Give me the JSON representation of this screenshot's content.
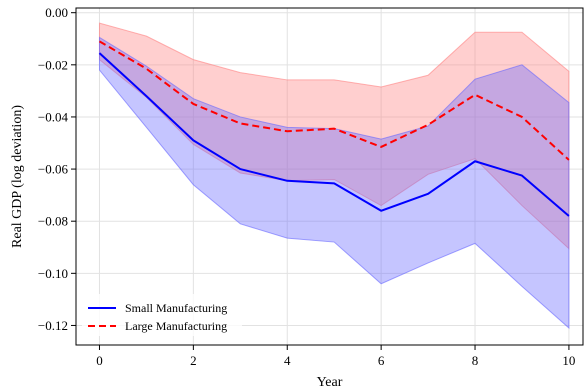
{
  "chart_data": {
    "type": "line",
    "title": "",
    "xlabel": "Year",
    "ylabel": "Real GDP (log deviation)",
    "xlim": [
      -0.5,
      10.3
    ],
    "ylim": [
      -0.1275,
      0.0018
    ],
    "xticks": [
      0,
      2,
      4,
      6,
      8,
      10
    ],
    "yticks": [
      0.0,
      -0.02,
      -0.04,
      -0.06,
      -0.08,
      -0.1,
      -0.12
    ],
    "ytick_labels": [
      "0.00",
      "−0.02",
      "−0.04",
      "−0.06",
      "−0.08",
      "−0.10",
      "−0.12"
    ],
    "grid": true,
    "legend_position": "lower-left",
    "x": [
      0,
      1,
      2,
      3,
      4,
      5,
      6,
      7,
      8,
      9,
      10
    ],
    "series": [
      {
        "name": "Small Manufacturing",
        "color": "#0000ff",
        "band_color": "#6666ff",
        "line_style": "solid",
        "values": [
          -0.0155,
          -0.032,
          -0.049,
          -0.06,
          -0.0645,
          -0.0655,
          -0.076,
          -0.0695,
          -0.057,
          -0.0625,
          -0.078
        ],
        "lower": [
          -0.022,
          -0.044,
          -0.066,
          -0.081,
          -0.0865,
          -0.088,
          -0.104,
          -0.096,
          -0.0885,
          -0.105,
          -0.121
        ],
        "upper": [
          -0.0095,
          -0.0205,
          -0.033,
          -0.04,
          -0.044,
          -0.0445,
          -0.0485,
          -0.0435,
          -0.0255,
          -0.02,
          -0.0345
        ]
      },
      {
        "name": "Large Manufacturing",
        "color": "#ff0000",
        "band_color": "#ff8080",
        "line_style": "dashed",
        "values": [
          -0.011,
          -0.0215,
          -0.035,
          -0.0425,
          -0.0455,
          -0.0445,
          -0.0515,
          -0.043,
          -0.0315,
          -0.04,
          -0.0565
        ],
        "lower": [
          -0.018,
          -0.0325,
          -0.0505,
          -0.0615,
          -0.0645,
          -0.064,
          -0.074,
          -0.062,
          -0.056,
          -0.074,
          -0.0905
        ],
        "upper": [
          -0.004,
          -0.009,
          -0.018,
          -0.023,
          -0.0258,
          -0.0258,
          -0.0285,
          -0.024,
          -0.0075,
          -0.0075,
          -0.0225
        ]
      }
    ]
  }
}
